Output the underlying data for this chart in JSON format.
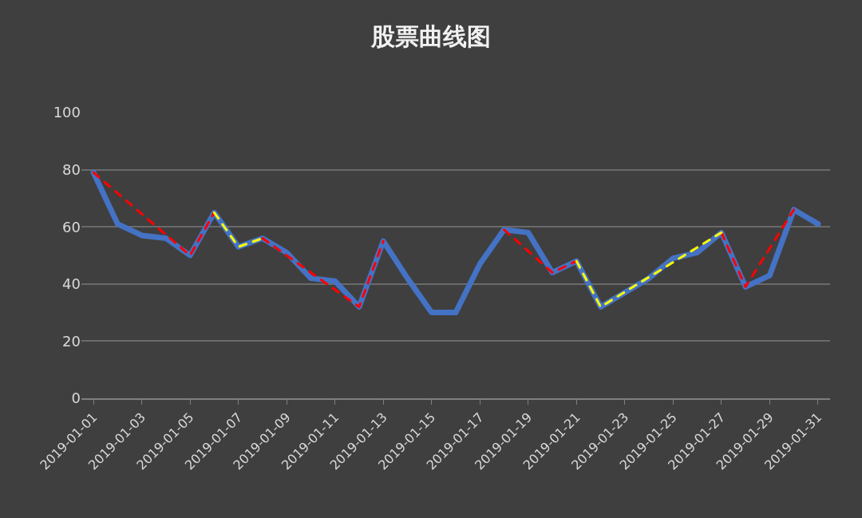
{
  "chart_data": {
    "type": "line",
    "title": "股票曲线图",
    "x": [
      "2019-01-01",
      "2019-01-02",
      "2019-01-03",
      "2019-01-04",
      "2019-01-05",
      "2019-01-06",
      "2019-01-07",
      "2019-01-08",
      "2019-01-09",
      "2019-01-10",
      "2019-01-11",
      "2019-01-12",
      "2019-01-13",
      "2019-01-14",
      "2019-01-15",
      "2019-01-16",
      "2019-01-17",
      "2019-01-18",
      "2019-01-19",
      "2019-01-20",
      "2019-01-21",
      "2019-01-22",
      "2019-01-23",
      "2019-01-24",
      "2019-01-25",
      "2019-01-26",
      "2019-01-27",
      "2019-01-28",
      "2019-01-29",
      "2019-01-30",
      "2019-01-31"
    ],
    "series": [
      {
        "color": "#4472c4",
        "line_style": "solid",
        "values": [
          79,
          61,
          57,
          56,
          50,
          65,
          53,
          56,
          51,
          42,
          41,
          32,
          55,
          42,
          30,
          30,
          47,
          59,
          58,
          44,
          48,
          32,
          37,
          42,
          49,
          51,
          58,
          39,
          43,
          66,
          61
        ]
      },
      {
        "color": "#ff0000",
        "line_style": "dashed",
        "x": [
          "2019-01-01",
          "2019-01-05",
          "2019-01-06",
          "2019-01-07",
          "2019-01-08",
          "2019-01-12",
          "2019-01-13",
          "2019-01-14",
          "2019-01-18",
          "2019-01-20",
          "2019-01-21",
          "2019-01-22",
          "2019-01-27",
          "2019-01-28",
          "2019-01-30"
        ],
        "values": [
          79,
          50,
          65,
          null,
          56,
          32,
          55,
          null,
          59,
          44,
          48,
          null,
          58,
          39,
          66
        ]
      },
      {
        "color": "#ffff00",
        "line_style": "dashed",
        "x": [
          "2019-01-06",
          "2019-01-07",
          "2019-01-08",
          "2019-01-09",
          "2019-01-21",
          "2019-01-22",
          "2019-01-27"
        ],
        "values": [
          65,
          53,
          56,
          null,
          48,
          32,
          58
        ]
      }
    ],
    "xlim": [
      "2018-12-31T12:00",
      "2019-01-31T12:00"
    ],
    "xticks": [
      "2019-01-01",
      "2019-01-03",
      "2019-01-05",
      "2019-01-07",
      "2019-01-09",
      "2019-01-11",
      "2019-01-13",
      "2019-01-15",
      "2019-01-17",
      "2019-01-19",
      "2019-01-21",
      "2019-01-23",
      "2019-01-25",
      "2019-01-27",
      "2019-01-29",
      "2019-01-31"
    ],
    "ylim": [
      0,
      100
    ],
    "yticks": [
      0,
      20,
      40,
      60,
      80,
      100
    ],
    "grid": "y",
    "marker": "none"
  }
}
